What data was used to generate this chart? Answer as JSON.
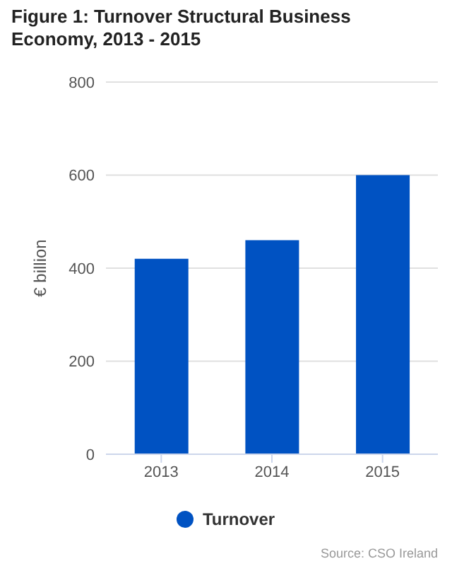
{
  "chart_data": {
    "type": "bar",
    "title": "Figure 1: Turnover Structural Business Economy, 2013 - 2015",
    "ylabel": "€ billion",
    "categories": [
      "2013",
      "2014",
      "2015"
    ],
    "series": [
      {
        "name": "Turnover",
        "color": "#0052c2",
        "values": [
          420,
          460,
          600
        ]
      }
    ],
    "ylim": [
      0,
      800
    ],
    "yticks": [
      0,
      200,
      400,
      600,
      800
    ],
    "grid": "y",
    "legend": "bottom",
    "annotations": [
      "Source: CSO Ireland"
    ]
  }
}
